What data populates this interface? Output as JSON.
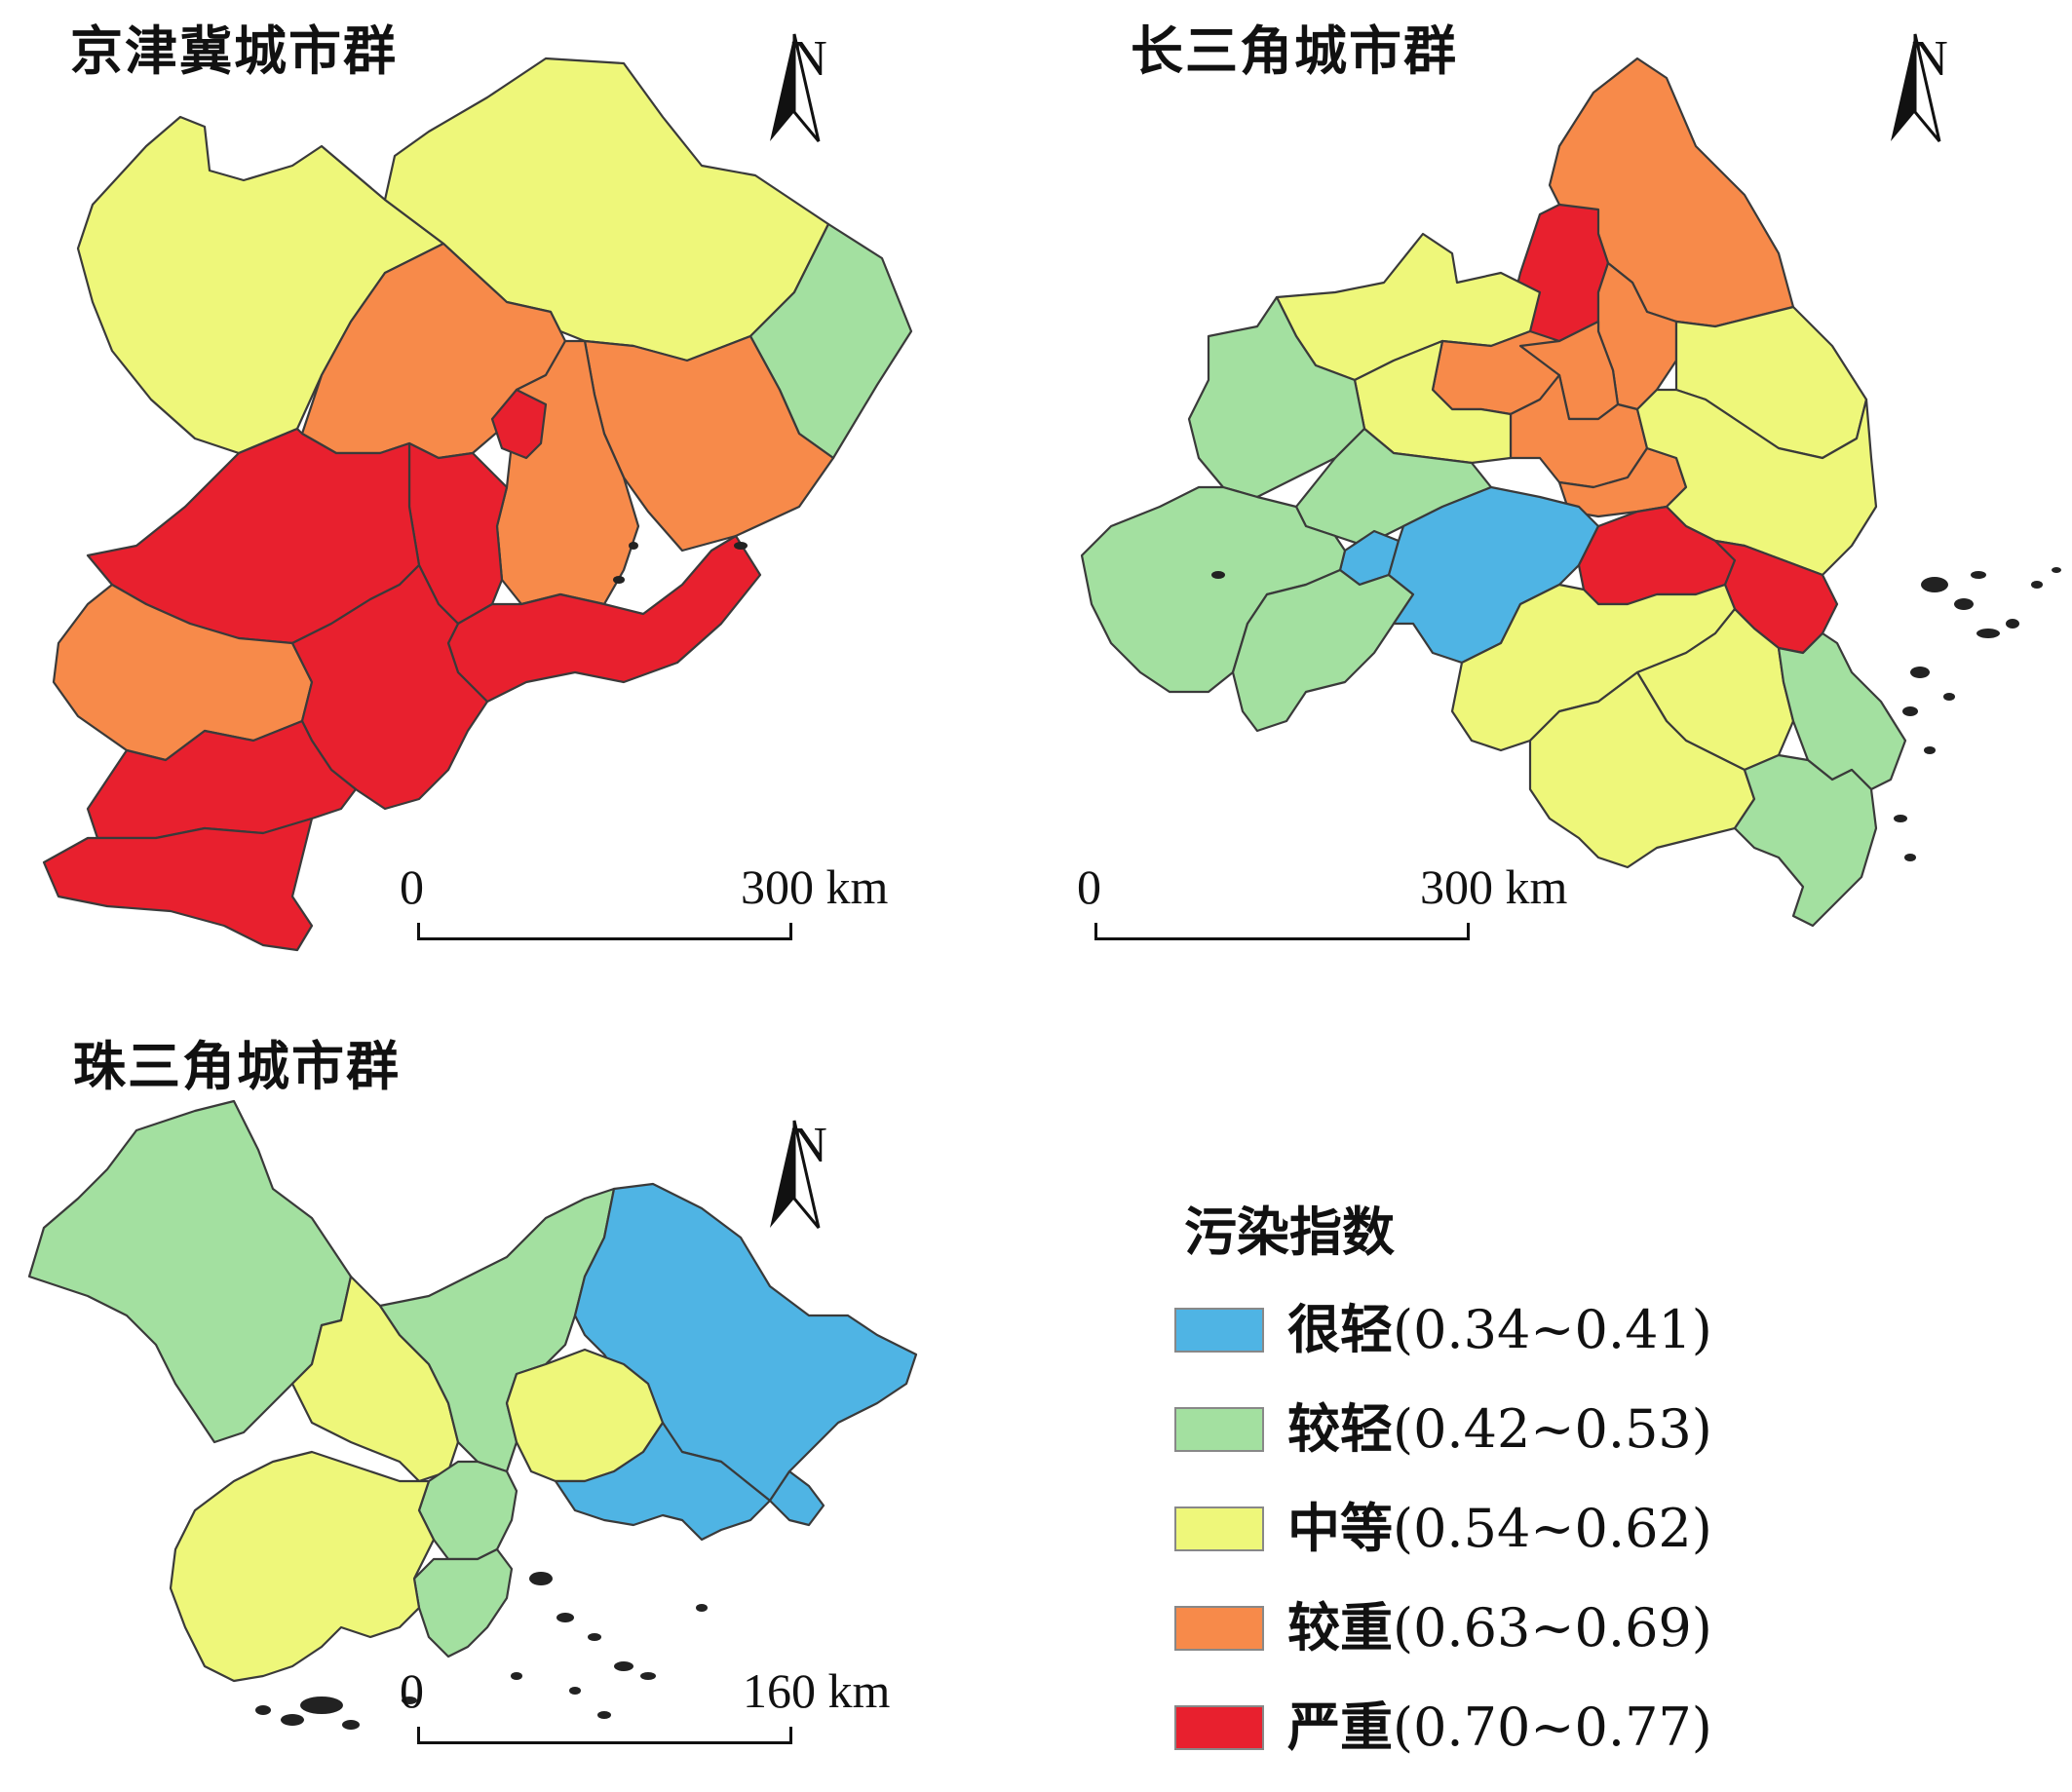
{
  "colors": {
    "very_light": "#4fb4e4",
    "light": "#a3e0a0",
    "medium": "#eef77a",
    "heavy": "#f78a4a",
    "severe": "#e8202e",
    "border": "#3a3a3a"
  },
  "maps": [
    {
      "title": "京津冀城市群",
      "north_label": "N",
      "scale": {
        "zero": "0",
        "distance": "300 km"
      }
    },
    {
      "title": "长三角城市群",
      "north_label": "N",
      "scale": {
        "zero": "0",
        "distance": "300 km"
      }
    },
    {
      "title": "珠三角城市群",
      "north_label": "N",
      "scale": {
        "zero": "0",
        "distance": "160 km"
      }
    }
  ],
  "legend": {
    "title": "污染指数",
    "items": [
      {
        "level": "很轻",
        "range": "(0.34~0.41)",
        "color": "#4fb4e4"
      },
      {
        "level": "较轻",
        "range": "(0.42~0.53)",
        "color": "#a3e0a0"
      },
      {
        "level": "中等",
        "range": "(0.54~0.62)",
        "color": "#eef77a"
      },
      {
        "level": "较重",
        "range": "(0.63~0.69)",
        "color": "#f78a4a"
      },
      {
        "level": "严重",
        "range": "(0.70~0.77)",
        "color": "#e8202e"
      }
    ]
  }
}
